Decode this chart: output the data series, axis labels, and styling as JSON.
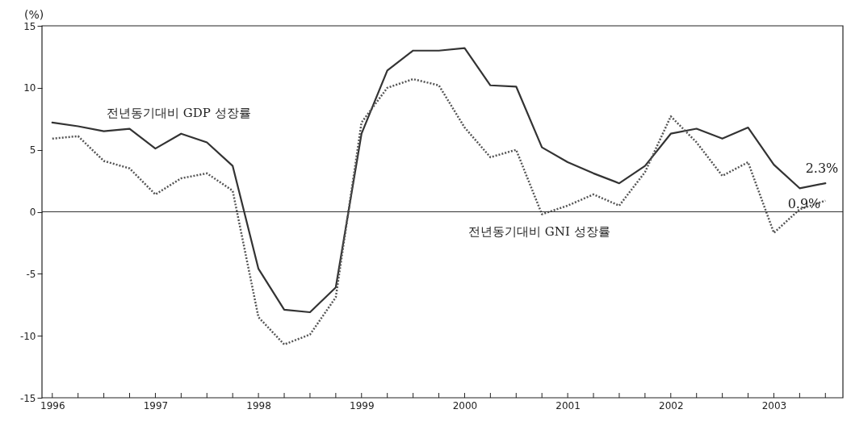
{
  "chart_data": {
    "type": "line",
    "ylabel": "(%)",
    "x": [
      1996,
      1996.25,
      1996.5,
      1996.75,
      1997,
      1997.25,
      1997.5,
      1997.75,
      1998,
      1998.25,
      1998.5,
      1998.75,
      1999,
      1999.25,
      1999.5,
      1999.75,
      2000,
      2000.25,
      2000.5,
      2000.75,
      2001,
      2001.25,
      2001.5,
      2001.75,
      2002,
      2002.25,
      2002.5,
      2002.75,
      2003,
      2003.25,
      2003.5
    ],
    "series": [
      {
        "name": "전년동기대비 GDP 성장률",
        "color": "#333333",
        "line_style": "solid",
        "values": [
          7.2,
          6.9,
          6.5,
          6.7,
          5.1,
          6.3,
          5.6,
          3.7,
          -4.6,
          -7.9,
          -8.1,
          -6.1,
          6.3,
          11.4,
          13.0,
          13.0,
          13.2,
          10.2,
          10.1,
          5.2,
          4.0,
          3.1,
          2.3,
          3.7,
          6.3,
          6.7,
          5.9,
          6.8,
          3.8,
          1.9,
          2.3
        ]
      },
      {
        "name": "전년동기대비 GNI 성장률",
        "color": "#555555",
        "line_style": "dotted",
        "values": [
          5.9,
          6.1,
          4.1,
          3.5,
          1.4,
          2.7,
          3.1,
          1.7,
          -8.5,
          -10.7,
          -9.9,
          -6.9,
          7.2,
          10.0,
          10.7,
          10.2,
          6.8,
          4.4,
          5.0,
          -0.2,
          0.5,
          1.4,
          0.5,
          3.2,
          7.7,
          5.6,
          2.9,
          4.0,
          -1.7,
          0.2,
          0.9
        ]
      }
    ],
    "annotations": [
      {
        "text": "2.3%",
        "x": 2003.5,
        "y": 2.3
      },
      {
        "text": "0.9%",
        "x": 2003.5,
        "y": 0.9
      }
    ],
    "ref_lines": [
      {
        "axis": "y",
        "value": 0,
        "color": "#333333"
      }
    ],
    "xlim": [
      1995.9,
      2003.67
    ],
    "xticks": [
      {
        "value": 1996,
        "label": "1996"
      },
      {
        "value": 1996.25,
        "label": null
      },
      {
        "value": 1996.5,
        "label": null
      },
      {
        "value": 1996.75,
        "label": null
      },
      {
        "value": 1997,
        "label": "1997"
      },
      {
        "value": 1997.25,
        "label": null
      },
      {
        "value": 1997.5,
        "label": null
      },
      {
        "value": 1997.75,
        "label": null
      },
      {
        "value": 1998,
        "label": "1998"
      },
      {
        "value": 1998.25,
        "label": null
      },
      {
        "value": 1998.5,
        "label": null
      },
      {
        "value": 1998.75,
        "label": null
      },
      {
        "value": 1999,
        "label": "1999"
      },
      {
        "value": 1999.25,
        "label": null
      },
      {
        "value": 1999.5,
        "label": null
      },
      {
        "value": 1999.75,
        "label": null
      },
      {
        "value": 2000,
        "label": "2000"
      },
      {
        "value": 2000.25,
        "label": null
      },
      {
        "value": 2000.5,
        "label": null
      },
      {
        "value": 2000.75,
        "label": null
      },
      {
        "value": 2001,
        "label": "2001"
      },
      {
        "value": 2001.25,
        "label": null
      },
      {
        "value": 2001.5,
        "label": null
      },
      {
        "value": 2001.75,
        "label": null
      },
      {
        "value": 2002,
        "label": "2002"
      },
      {
        "value": 2002.25,
        "label": null
      },
      {
        "value": 2002.5,
        "label": null
      },
      {
        "value": 2002.75,
        "label": null
      },
      {
        "value": 2003,
        "label": "2003"
      },
      {
        "value": 2003.25,
        "label": null
      },
      {
        "value": 2003.5,
        "label": null
      }
    ],
    "ylim": [
      -15,
      15
    ],
    "yticks": [
      -15,
      -10,
      -5,
      0,
      5,
      10,
      15
    ],
    "grid": false,
    "legend": false,
    "marker": "none"
  }
}
